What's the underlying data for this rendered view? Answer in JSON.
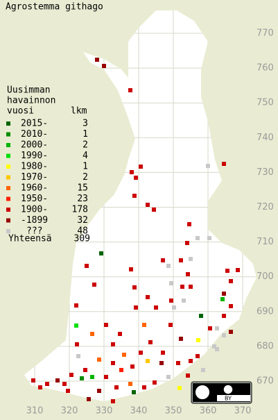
{
  "title": "Agrostemma githago",
  "legend": {
    "heading": [
      "Uusimman",
      "havainnon",
      "vuosi"
    ],
    "count_heading": "lkm",
    "entries": [
      {
        "label": "2015-",
        "count": 3,
        "color": "#006400"
      },
      {
        "label": "2010-",
        "count": 1,
        "color": "#008c00"
      },
      {
        "label": "2000-",
        "count": 2,
        "color": "#00b400"
      },
      {
        "label": "1990-",
        "count": 4,
        "color": "#00e000"
      },
      {
        "label": "1980-",
        "count": 1,
        "color": "#ffff00"
      },
      {
        "label": "1970-",
        "count": 2,
        "color": "#ffc800"
      },
      {
        "label": "1960-",
        "count": 15,
        "color": "#ff6400"
      },
      {
        "label": "1950-",
        "count": 23,
        "color": "#ff2000"
      },
      {
        "label": "1900-",
        "count": 178,
        "color": "#cc0000"
      },
      {
        "label": "-1899",
        "count": 32,
        "color": "#960000"
      },
      {
        "label": "???",
        "count": 48,
        "color": "#c8c8c8"
      }
    ],
    "total_label": "Yhteensä",
    "total": 309
  },
  "x_grid_labels": [
    310,
    320,
    330,
    340,
    350,
    360,
    370
  ],
  "y_grid_labels": [
    770,
    760,
    750,
    740,
    730,
    720,
    710,
    700,
    690,
    680,
    670
  ],
  "license_badge": "BY"
}
